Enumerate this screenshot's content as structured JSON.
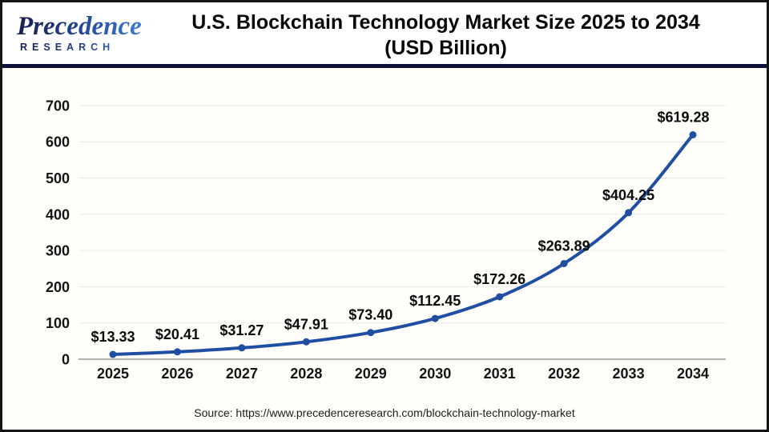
{
  "header": {
    "logo_brand": "Precedence",
    "logo_sub": "RESEARCH",
    "title_line1": "U.S. Blockchain Technology Market Size 2025 to 2034",
    "title_line2": "(USD Billion)"
  },
  "chart_data": {
    "type": "line",
    "title": "U.S. Blockchain Technology Market Size 2025 to 2034 (USD Billion)",
    "categories": [
      "2025",
      "2026",
      "2027",
      "2028",
      "2029",
      "2030",
      "2031",
      "2032",
      "2033",
      "2034"
    ],
    "values": [
      13.33,
      20.41,
      31.27,
      47.91,
      73.4,
      112.45,
      172.26,
      263.89,
      404.25,
      619.28
    ],
    "point_labels": [
      "$13.33",
      "$20.41",
      "$31.27",
      "$47.91",
      "$73.40",
      "$112.45",
      "$172.26",
      "$263.89",
      "$404.25",
      "$619.28"
    ],
    "ylabel": "",
    "xlabel": "",
    "ylim": [
      0,
      700
    ],
    "y_ticks": [
      0,
      100,
      200,
      300,
      400,
      500,
      600,
      700
    ],
    "grid": true,
    "legend_position": "none",
    "line_color": "#1f4ea3",
    "marker_color": "#1f4ea3"
  },
  "footer": {
    "source": "Source: https://www.precedenceresearch.com/blockchain-technology-market"
  },
  "colors": {
    "divider": "#0e1238",
    "frame_border": "#161616",
    "grid": "#e9e9e9",
    "axis": "#b0b0b0",
    "label_text": "#0a0a0a"
  }
}
